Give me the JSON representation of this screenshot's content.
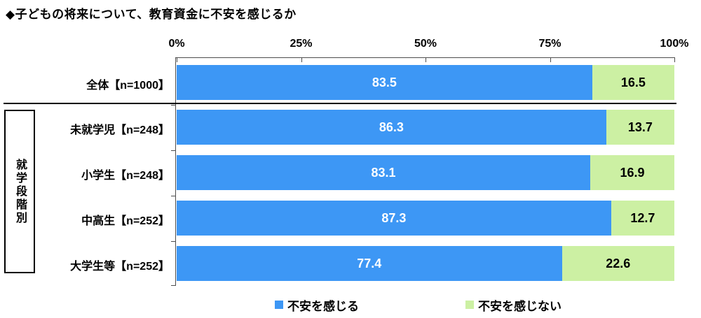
{
  "title": "◆子どもの将来について、教育資金に不安を感じるか",
  "group_label": "就学段階別",
  "colors": {
    "anxious_blue": "#3D97F5",
    "not_anxious_green": "#CCF0A3",
    "separator": "#000000",
    "axis_line": "#4d4d4d"
  },
  "axis": {
    "ticks": [
      "0%",
      "25%",
      "50%",
      "75%",
      "100%"
    ]
  },
  "legend": [
    {
      "label": "不安を感じる",
      "color": "#3D97F5"
    },
    {
      "label": "不安を感じない",
      "color": "#CCF0A3"
    }
  ],
  "chart_data": {
    "type": "bar",
    "orientation": "horizontal",
    "stacked": true,
    "title": "◆子どもの将来について、教育資金に不安を感じるか",
    "categories": [
      "全体【n=1000】",
      "未就学児【n=248】",
      "小学生【n=248】",
      "中高生【n=252】",
      "大学生等【n=252】"
    ],
    "series": [
      {
        "name": "不安を感じる",
        "color": "#3D97F5",
        "values": [
          83.5,
          86.3,
          83.1,
          87.3,
          77.4
        ]
      },
      {
        "name": "不安を感じない",
        "color": "#CCF0A3",
        "values": [
          16.5,
          13.7,
          16.9,
          12.7,
          22.6
        ]
      }
    ],
    "xlim": [
      0,
      100
    ],
    "x_tick_labels": [
      "0%",
      "25%",
      "50%",
      "75%",
      "100%"
    ],
    "grid": false,
    "legend_position": "bottom",
    "value_labels_shown": true,
    "group_bracket_label": "就学段階別",
    "group_bracket_applies_to": [
      "未就学児【n=248】",
      "小学生【n=248】",
      "中高生【n=252】",
      "大学生等【n=252】"
    ]
  }
}
